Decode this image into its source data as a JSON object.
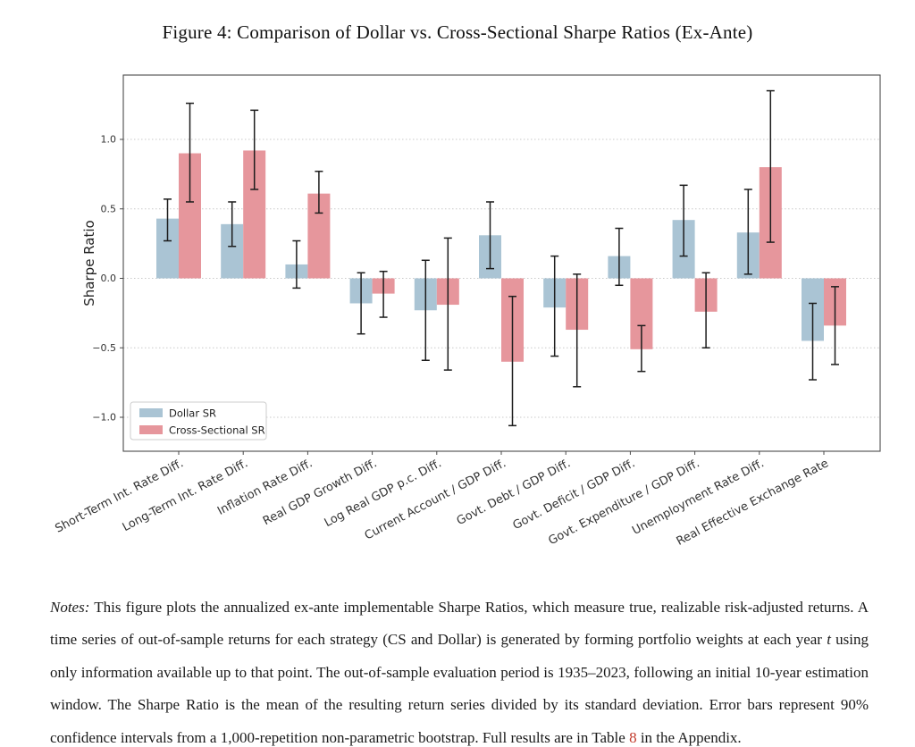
{
  "chart_data": {
    "type": "bar",
    "title": "Figure 4: Comparison of Dollar vs. Cross-Sectional Sharpe Ratios (Ex-Ante)",
    "xlabel": "",
    "ylabel": "Sharpe Ratio",
    "ylim": [
      -1.24,
      1.46
    ],
    "yticks": [
      1.0,
      0.5,
      0.0,
      -0.5,
      -1.0
    ],
    "grid": "horizontal dotted gridlines at y-ticks",
    "legend_position": "lower left",
    "error_bars": "90% confidence intervals (1,000-repetition non-parametric bootstrap)",
    "categories": [
      "Short-Term Int. Rate Diff.",
      "Long-Term Int. Rate Diff.",
      "Inflation Rate Diff.",
      "Real GDP Growth Diff.",
      "Log Real GDP p.c. Diff.",
      "Current Account / GDP Diff.",
      "Govt. Debt / GDP Diff.",
      "Govt. Deficit / GDP Diff.",
      "Govt. Expenditure / GDP Diff.",
      "Unemployment Rate Diff.",
      "Real Effective Exchange Rate"
    ],
    "series": [
      {
        "name": "Dollar SR",
        "color": "#aac4d4",
        "values": [
          0.43,
          0.39,
          0.1,
          -0.18,
          -0.23,
          0.31,
          -0.21,
          0.16,
          0.42,
          0.33,
          -0.45
        ],
        "ci_low": [
          0.27,
          0.23,
          -0.07,
          -0.4,
          -0.59,
          0.07,
          -0.56,
          -0.05,
          0.16,
          0.03,
          -0.73
        ],
        "ci_high": [
          0.57,
          0.55,
          0.27,
          0.04,
          0.13,
          0.55,
          0.16,
          0.36,
          0.67,
          0.64,
          -0.18
        ]
      },
      {
        "name": "Cross-Sectional SR",
        "color": "#e6969c",
        "values": [
          0.9,
          0.92,
          0.61,
          -0.11,
          -0.19,
          -0.6,
          -0.37,
          -0.51,
          -0.24,
          0.8,
          -0.34
        ],
        "ci_low": [
          0.55,
          0.64,
          0.47,
          -0.28,
          -0.66,
          -1.06,
          -0.78,
          -0.67,
          -0.5,
          0.26,
          -0.62
        ],
        "ci_high": [
          1.26,
          1.21,
          0.77,
          0.05,
          0.29,
          -0.13,
          0.03,
          -0.34,
          0.04,
          1.35,
          -0.06
        ]
      }
    ]
  },
  "notes": {
    "segments": [
      {
        "text": "Notes:",
        "style": "italic"
      },
      {
        "text": " This figure plots the annualized ex-ante implementable Sharpe Ratios, which measure true, realizable risk-adjusted returns. A time series of out-of-sample returns for each strategy (CS and Dollar) is generated by forming portfolio weights at each year ",
        "style": "normal"
      },
      {
        "text": "t",
        "style": "italic"
      },
      {
        "text": " using only information available up to that point. The out-of-sample evaluation period is 1935–2023, following an initial 10-year estimation window. The Sharpe Ratio is the mean of the resulting return series divided by its standard deviation. Error bars represent 90% confidence intervals from a 1,000-repetition non-parametric bootstrap. Full results are in Table ",
        "style": "normal"
      },
      {
        "text": "8",
        "style": "link"
      },
      {
        "text": " in the Appendix.",
        "style": "normal"
      }
    ]
  },
  "colors": {
    "dollar_bar": "#aac4d4",
    "cross_sectional_bar": "#e6969c",
    "error_bar": "#1c1c1c",
    "grid_line": "#c9c9c9",
    "spine": "#4a4a4a",
    "tick_label": "#333333",
    "legend_border": "#cccccc",
    "link": "#c23a2b",
    "text": "#1a1a1a"
  }
}
